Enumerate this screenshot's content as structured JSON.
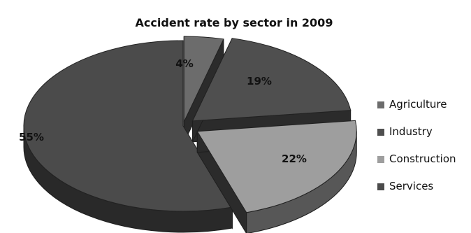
{
  "chart_data": {
    "type": "pie",
    "title": "Accident rate by sector in 2009",
    "legend_position": "right",
    "slices": [
      {
        "label": "Agriculture",
        "value": 4,
        "value_label": "4%"
      },
      {
        "label": "Industry",
        "value": 19,
        "value_label": "19%"
      },
      {
        "label": "Construction",
        "value": 22,
        "value_label": "22%"
      },
      {
        "label": "Services",
        "value": 55,
        "value_label": "55%"
      }
    ],
    "colors": {
      "Agriculture": "#6c6c6c",
      "Industry": "#4f4f4f",
      "Construction": "#9e9e9e",
      "Services": "#4b4b4b",
      "depth": "#2b2b2b"
    }
  }
}
